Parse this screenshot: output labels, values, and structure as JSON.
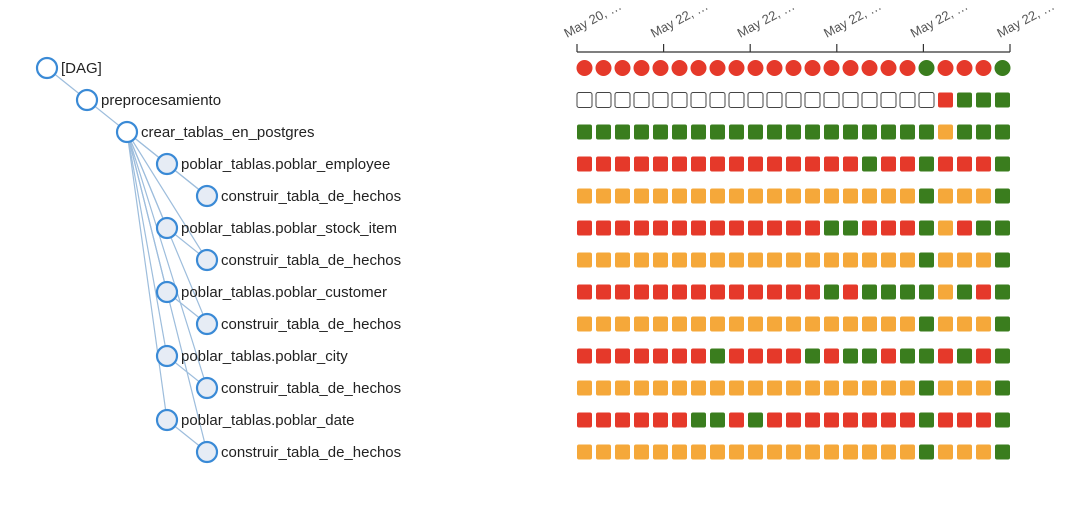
{
  "colors": {
    "success": "#3a7d1e",
    "failed": "#e5392a",
    "upstream_failed": "#f5a83a",
    "no_status": "#ffffff",
    "node_fill_leaf": "#e6ecf5",
    "node_fill_group": "#ffffff"
  },
  "dates": [
    "May 20, …",
    "May 22, …",
    "May 22, …",
    "May 22, …",
    "May 22, …",
    "May 22, …"
  ],
  "runs": [
    "failed",
    "failed",
    "failed",
    "failed",
    "failed",
    "failed",
    "failed",
    "failed",
    "failed",
    "failed",
    "failed",
    "failed",
    "failed",
    "failed",
    "failed",
    "failed",
    "failed",
    "failed",
    "success",
    "failed",
    "failed",
    "failed",
    "success"
  ],
  "tasks": [
    {
      "label": "[DAG]",
      "depth": 0,
      "is_dag": true,
      "states": []
    },
    {
      "label": "preprocesamiento",
      "depth": 1,
      "states": [
        "none",
        "none",
        "none",
        "none",
        "none",
        "none",
        "none",
        "none",
        "none",
        "none",
        "none",
        "none",
        "none",
        "none",
        "none",
        "none",
        "none",
        "none",
        "none",
        "failed",
        "success",
        "success",
        "success"
      ]
    },
    {
      "label": "crear_tablas_en_postgres",
      "depth": 2,
      "states": [
        "success",
        "success",
        "success",
        "success",
        "success",
        "success",
        "success",
        "success",
        "success",
        "success",
        "success",
        "success",
        "success",
        "success",
        "success",
        "success",
        "success",
        "success",
        "success",
        "upstream_failed",
        "success",
        "success",
        "success"
      ]
    },
    {
      "label": "poblar_tablas.poblar_employee",
      "depth": 3,
      "states": [
        "failed",
        "failed",
        "failed",
        "failed",
        "failed",
        "failed",
        "failed",
        "failed",
        "failed",
        "failed",
        "failed",
        "failed",
        "failed",
        "failed",
        "failed",
        "success",
        "failed",
        "failed",
        "success",
        "failed",
        "failed",
        "failed",
        "success"
      ]
    },
    {
      "label": "construir_tabla_de_hechos",
      "depth": 4,
      "states": [
        "upstream_failed",
        "upstream_failed",
        "upstream_failed",
        "upstream_failed",
        "upstream_failed",
        "upstream_failed",
        "upstream_failed",
        "upstream_failed",
        "upstream_failed",
        "upstream_failed",
        "upstream_failed",
        "upstream_failed",
        "upstream_failed",
        "upstream_failed",
        "upstream_failed",
        "upstream_failed",
        "upstream_failed",
        "upstream_failed",
        "success",
        "upstream_failed",
        "upstream_failed",
        "upstream_failed",
        "success"
      ]
    },
    {
      "label": "poblar_tablas.poblar_stock_item",
      "depth": 3,
      "states": [
        "failed",
        "failed",
        "failed",
        "failed",
        "failed",
        "failed",
        "failed",
        "failed",
        "failed",
        "failed",
        "failed",
        "failed",
        "failed",
        "success",
        "success",
        "failed",
        "failed",
        "failed",
        "success",
        "upstream_failed",
        "failed",
        "success",
        "success"
      ]
    },
    {
      "label": "construir_tabla_de_hechos",
      "depth": 4,
      "states": [
        "upstream_failed",
        "upstream_failed",
        "upstream_failed",
        "upstream_failed",
        "upstream_failed",
        "upstream_failed",
        "upstream_failed",
        "upstream_failed",
        "upstream_failed",
        "upstream_failed",
        "upstream_failed",
        "upstream_failed",
        "upstream_failed",
        "upstream_failed",
        "upstream_failed",
        "upstream_failed",
        "upstream_failed",
        "upstream_failed",
        "success",
        "upstream_failed",
        "upstream_failed",
        "upstream_failed",
        "success"
      ]
    },
    {
      "label": "poblar_tablas.poblar_customer",
      "depth": 3,
      "states": [
        "failed",
        "failed",
        "failed",
        "failed",
        "failed",
        "failed",
        "failed",
        "failed",
        "failed",
        "failed",
        "failed",
        "failed",
        "failed",
        "success",
        "failed",
        "success",
        "success",
        "success",
        "success",
        "upstream_failed",
        "success",
        "failed",
        "success"
      ]
    },
    {
      "label": "construir_tabla_de_hechos",
      "depth": 4,
      "states": [
        "upstream_failed",
        "upstream_failed",
        "upstream_failed",
        "upstream_failed",
        "upstream_failed",
        "upstream_failed",
        "upstream_failed",
        "upstream_failed",
        "upstream_failed",
        "upstream_failed",
        "upstream_failed",
        "upstream_failed",
        "upstream_failed",
        "upstream_failed",
        "upstream_failed",
        "upstream_failed",
        "upstream_failed",
        "upstream_failed",
        "success",
        "upstream_failed",
        "upstream_failed",
        "upstream_failed",
        "success"
      ]
    },
    {
      "label": "poblar_tablas.poblar_city",
      "depth": 3,
      "states": [
        "failed",
        "failed",
        "failed",
        "failed",
        "failed",
        "failed",
        "failed",
        "success",
        "failed",
        "failed",
        "failed",
        "failed",
        "success",
        "failed",
        "success",
        "success",
        "failed",
        "success",
        "success",
        "failed",
        "success",
        "failed",
        "success"
      ]
    },
    {
      "label": "construir_tabla_de_hechos",
      "depth": 4,
      "states": [
        "upstream_failed",
        "upstream_failed",
        "upstream_failed",
        "upstream_failed",
        "upstream_failed",
        "upstream_failed",
        "upstream_failed",
        "upstream_failed",
        "upstream_failed",
        "upstream_failed",
        "upstream_failed",
        "upstream_failed",
        "upstream_failed",
        "upstream_failed",
        "upstream_failed",
        "upstream_failed",
        "upstream_failed",
        "upstream_failed",
        "success",
        "upstream_failed",
        "upstream_failed",
        "upstream_failed",
        "success"
      ]
    },
    {
      "label": "poblar_tablas.poblar_date",
      "depth": 3,
      "states": [
        "failed",
        "failed",
        "failed",
        "failed",
        "failed",
        "failed",
        "success",
        "success",
        "failed",
        "success",
        "failed",
        "failed",
        "failed",
        "failed",
        "failed",
        "failed",
        "failed",
        "failed",
        "success",
        "failed",
        "failed",
        "failed",
        "success"
      ]
    },
    {
      "label": "construir_tabla_de_hechos",
      "depth": 4,
      "states": [
        "upstream_failed",
        "upstream_failed",
        "upstream_failed",
        "upstream_failed",
        "upstream_failed",
        "upstream_failed",
        "upstream_failed",
        "upstream_failed",
        "upstream_failed",
        "upstream_failed",
        "upstream_failed",
        "upstream_failed",
        "upstream_failed",
        "upstream_failed",
        "upstream_failed",
        "upstream_failed",
        "upstream_failed",
        "upstream_failed",
        "success",
        "upstream_failed",
        "upstream_failed",
        "upstream_failed",
        "success"
      ]
    }
  ],
  "links": [
    [
      0,
      1
    ],
    [
      1,
      2
    ],
    [
      2,
      3
    ],
    [
      3,
      4
    ],
    [
      2,
      5
    ],
    [
      5,
      6
    ],
    [
      2,
      7
    ],
    [
      7,
      8
    ],
    [
      2,
      9
    ],
    [
      9,
      10
    ],
    [
      2,
      11
    ],
    [
      11,
      12
    ],
    [
      2,
      4
    ],
    [
      2,
      6
    ],
    [
      2,
      8
    ],
    [
      2,
      10
    ],
    [
      2,
      12
    ]
  ]
}
